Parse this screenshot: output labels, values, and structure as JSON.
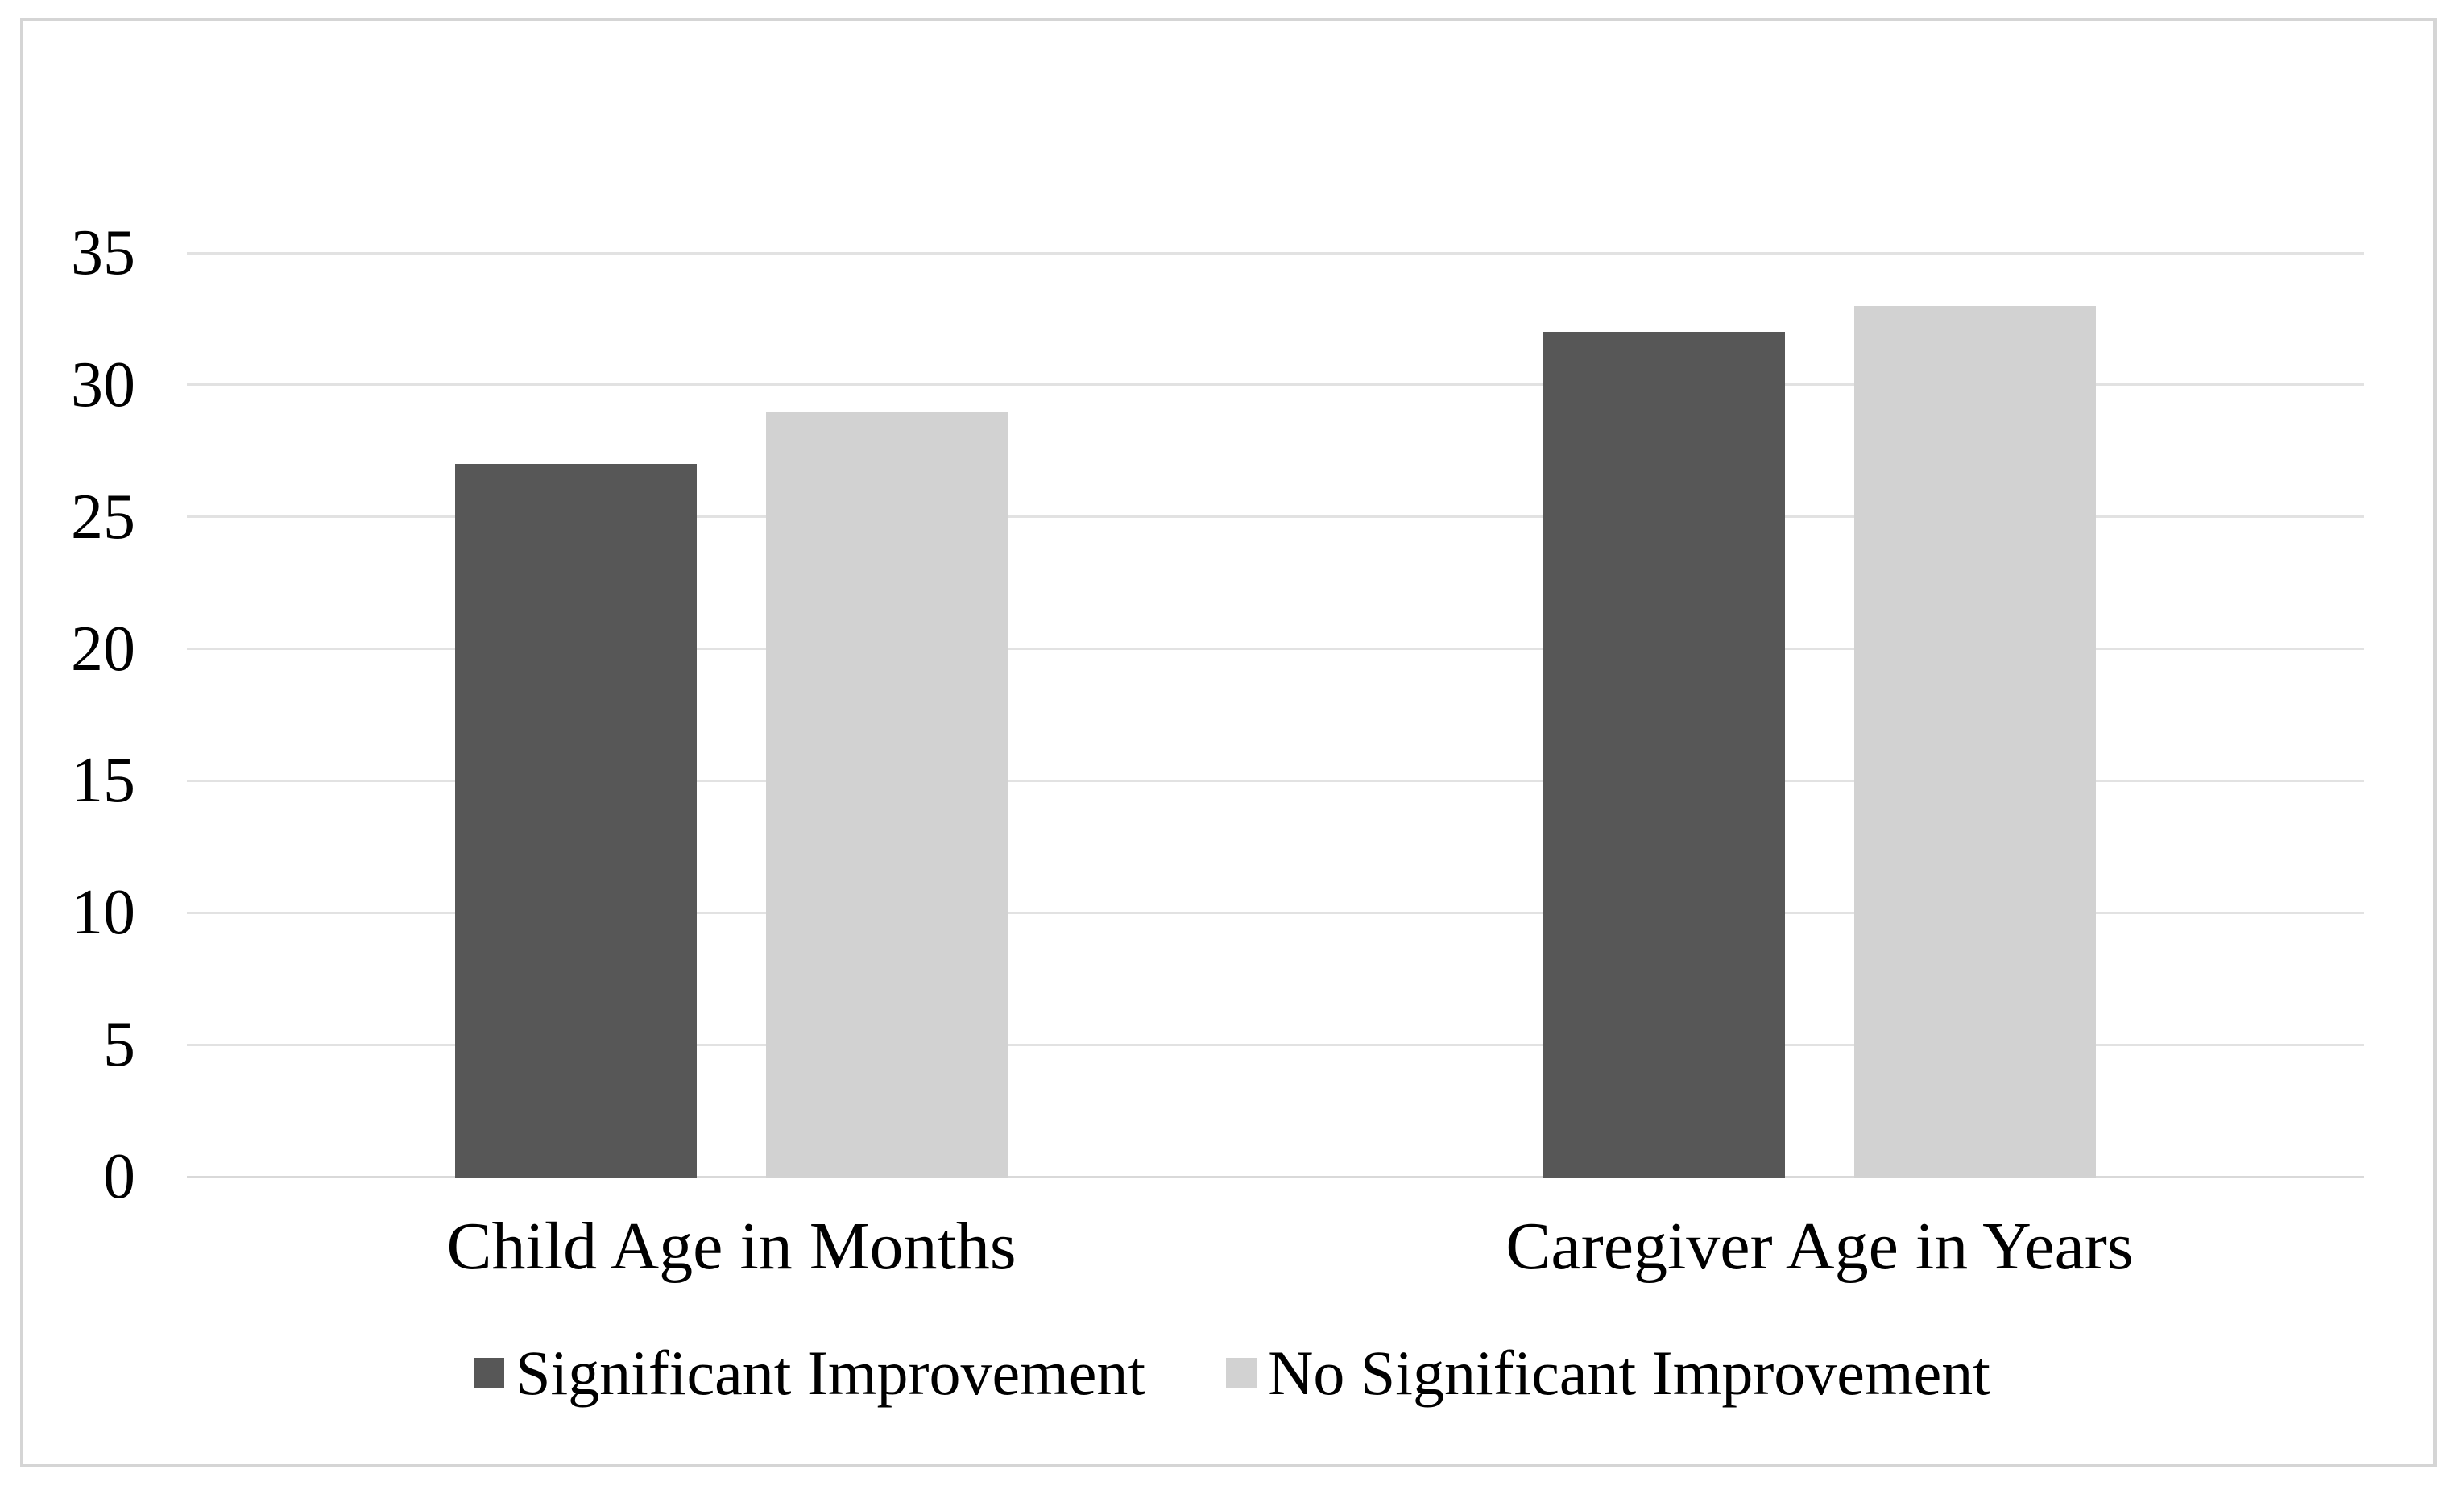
{
  "figure": {
    "background": "#ffffff",
    "border_color": "#d5d5d5"
  },
  "chart_data": {
    "type": "bar",
    "categories": [
      "Child Age in Months",
      "Caregiver Age in Years"
    ],
    "series": [
      {
        "name": "Significant Improvement",
        "color": "#575757",
        "values": [
          27,
          32
        ]
      },
      {
        "name": "No Significant Improvement",
        "color": "#d2d2d2",
        "values": [
          29,
          33
        ]
      }
    ],
    "title": "",
    "xlabel": "",
    "ylabel": "",
    "ylim": [
      0,
      35
    ],
    "yticks": [
      0,
      5,
      10,
      15,
      20,
      25,
      30,
      35
    ],
    "grid": true,
    "gridline_color": "#e2e2e2",
    "baseline_color": "#d9d9d9",
    "text_color": "#000000",
    "legend_position": "bottom"
  }
}
